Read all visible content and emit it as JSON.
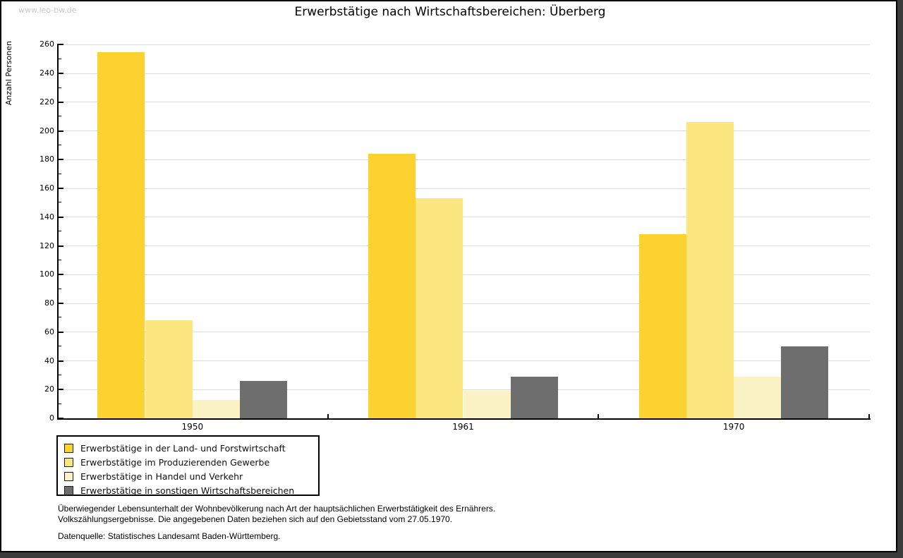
{
  "watermark": "www.leo-bw.de",
  "title": "Erwerbstätige nach Wirtschaftsbereichen: Überberg",
  "chart_data": {
    "type": "bar",
    "title": "Erwerbstätige nach Wirtschaftsbereichen: Überberg",
    "xlabel": "",
    "ylabel": "Anzahl Personen",
    "ylim": [
      0,
      260
    ],
    "ytick_step": 20,
    "ytick_minor_step": 10,
    "grid": true,
    "legend_position": "bottom-left",
    "categories": [
      "1950",
      "1961",
      "1970"
    ],
    "series": [
      {
        "name": "Erwerbstätige in der Land- und Forstwirtschaft",
        "color": "#fcd230",
        "values": [
          255,
          184,
          128
        ]
      },
      {
        "name": "Erwerbstätige im Produzierenden Gewerbe",
        "color": "#fbe680",
        "values": [
          68,
          153,
          206
        ]
      },
      {
        "name": "Erwerbstätige in Handel und Verkehr",
        "color": "#fbf2c5",
        "values": [
          13,
          19,
          29
        ]
      },
      {
        "name": "Erwerbstätige in sonstigen Wirtschaftsbereichen",
        "color": "#6e6e6e",
        "values": [
          26,
          29,
          50
        ]
      }
    ]
  },
  "footnotes": {
    "line1": "Überwiegender Lebensunterhalt der Wohnbevölkerung nach Art der hauptsächlichen Erwerbstätigkeit des Ernährers.",
    "line2": "Volkszählungsergebnisse. Die angegebenen Daten beziehen sich auf den Gebietsstand vom 27.05.1970.",
    "source": "Datenquelle: Statistisches Landesamt Baden-Württemberg."
  },
  "colors": {
    "grid": "#dbdbdb",
    "axis": "#000000",
    "frame_shadow": "#3b3b3b",
    "watermark": "#c9c9c9"
  }
}
